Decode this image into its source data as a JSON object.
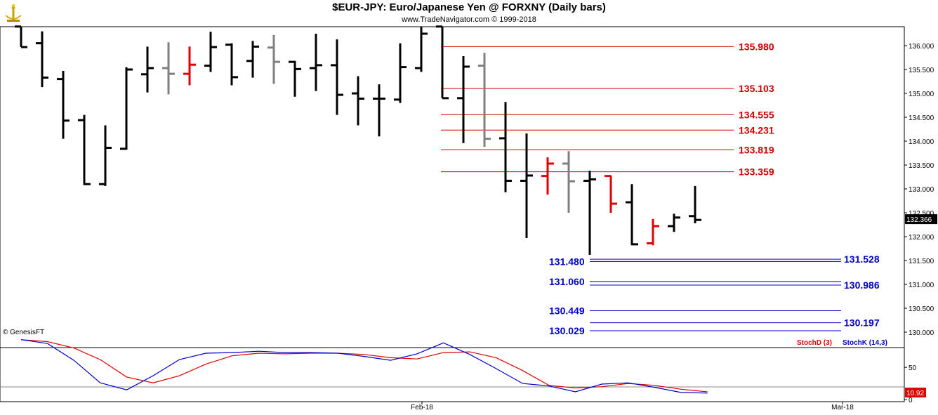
{
  "header": {
    "title": "$EUR-JPY:  Euro/Japanese Yen @ FORXNY  (Daily bars)",
    "subtitle": "www.TradeNavigator.com © 1999-2018",
    "copyright": "© GenesisFT"
  },
  "colors": {
    "up_bar": "#000000",
    "red_bar": "#e00000",
    "gray_bar": "#808080",
    "resistance": "#cc0000",
    "support": "#0000cc",
    "stoch_d": "#e00000",
    "stoch_k": "#0000cc",
    "price_tag_bg": "#000000",
    "stoch_tag_bg": "#e00000"
  },
  "chart_data": [
    {
      "type": "ohlc",
      "y_axis_ticks": [
        "136.000",
        "135.500",
        "135.000",
        "134.500",
        "134.000",
        "133.500",
        "133.000",
        "132.500",
        "132.000",
        "131.500",
        "131.000",
        "130.500",
        "130.000"
      ],
      "ylim": [
        129.6,
        136.4
      ],
      "x_tick_labels": [
        "Feb-18",
        "Mar-18"
      ],
      "last_price_label": "132.366",
      "bars": [
        {
          "o": 136.4,
          "h": 136.4,
          "l": 135.97,
          "c": 135.97,
          "color": "black"
        },
        {
          "o": 136.05,
          "h": 136.3,
          "l": 135.13,
          "c": 135.33,
          "color": "black"
        },
        {
          "o": 135.3,
          "h": 135.47,
          "l": 134.05,
          "c": 134.43,
          "color": "black"
        },
        {
          "o": 134.44,
          "h": 134.55,
          "l": 133.08,
          "c": 133.1,
          "color": "black"
        },
        {
          "o": 133.1,
          "h": 134.33,
          "l": 133.06,
          "c": 133.86,
          "color": "black"
        },
        {
          "o": 133.84,
          "h": 135.55,
          "l": 133.82,
          "c": 135.5,
          "color": "black"
        },
        {
          "o": 135.4,
          "h": 135.98,
          "l": 135.02,
          "c": 135.53,
          "color": "black"
        },
        {
          "o": 135.53,
          "h": 136.07,
          "l": 134.98,
          "c": 135.41,
          "color": "gray"
        },
        {
          "o": 135.41,
          "h": 135.98,
          "l": 135.17,
          "c": 135.6,
          "color": "red"
        },
        {
          "o": 135.58,
          "h": 136.29,
          "l": 135.45,
          "c": 135.97,
          "color": "black"
        },
        {
          "o": 136.02,
          "h": 136.05,
          "l": 135.17,
          "c": 135.34,
          "color": "black"
        },
        {
          "o": 135.68,
          "h": 136.1,
          "l": 135.33,
          "c": 135.98,
          "color": "black"
        },
        {
          "o": 135.96,
          "h": 136.22,
          "l": 135.2,
          "c": 135.66,
          "color": "gray"
        },
        {
          "o": 135.66,
          "h": 135.68,
          "l": 134.93,
          "c": 135.51,
          "color": "black"
        },
        {
          "o": 135.53,
          "h": 136.25,
          "l": 135.05,
          "c": 135.59,
          "color": "black"
        },
        {
          "o": 135.59,
          "h": 136.13,
          "l": 134.55,
          "c": 134.97,
          "color": "black"
        },
        {
          "o": 135.0,
          "h": 135.36,
          "l": 134.33,
          "c": 134.89,
          "color": "black"
        },
        {
          "o": 134.89,
          "h": 135.19,
          "l": 134.1,
          "c": 134.89,
          "color": "black"
        },
        {
          "o": 134.87,
          "h": 136.05,
          "l": 134.8,
          "c": 135.55,
          "color": "black"
        },
        {
          "o": 135.53,
          "h": 136.4,
          "l": 135.45,
          "c": 136.25,
          "color": "black"
        },
        {
          "o": 136.4,
          "h": 136.4,
          "l": 134.9,
          "c": 134.9,
          "color": "black"
        },
        {
          "o": 134.9,
          "h": 135.78,
          "l": 133.96,
          "c": 135.56,
          "color": "black"
        },
        {
          "o": 135.58,
          "h": 135.85,
          "l": 133.88,
          "c": 134.05,
          "color": "gray"
        },
        {
          "o": 134.06,
          "h": 134.82,
          "l": 132.93,
          "c": 133.17,
          "color": "black"
        },
        {
          "o": 133.17,
          "h": 134.16,
          "l": 131.97,
          "c": 133.28,
          "color": "black"
        },
        {
          "o": 133.27,
          "h": 133.66,
          "l": 132.88,
          "c": 133.53,
          "color": "red"
        },
        {
          "o": 133.53,
          "h": 133.79,
          "l": 132.5,
          "c": 133.16,
          "color": "gray"
        },
        {
          "o": 133.17,
          "h": 133.38,
          "l": 131.62,
          "c": 133.2,
          "color": "black"
        },
        {
          "o": 133.27,
          "h": 133.28,
          "l": 132.5,
          "c": 132.69,
          "color": "red"
        },
        {
          "o": 132.72,
          "h": 133.1,
          "l": 131.82,
          "c": 131.84,
          "color": "black"
        },
        {
          "o": 131.86,
          "h": 132.37,
          "l": 131.82,
          "c": 132.22,
          "color": "red"
        },
        {
          "o": 132.22,
          "h": 132.48,
          "l": 132.1,
          "c": 132.4,
          "color": "black"
        },
        {
          "o": 132.43,
          "h": 133.06,
          "l": 132.28,
          "c": 132.35,
          "color": "black"
        }
      ],
      "resistance_levels": [
        "135.980",
        "135.103",
        "134.555",
        "134.231",
        "133.819",
        "133.359"
      ],
      "support_levels_left": [
        "131.480",
        "131.060",
        "130.449",
        "130.029"
      ],
      "support_levels_right": [
        "131.528",
        "130.986",
        "130.197"
      ]
    },
    {
      "type": "line",
      "ylim": [
        0,
        100
      ],
      "y_axis_ticks": [
        "50",
        "0"
      ],
      "last_value_label": "10.92",
      "series": [
        {
          "name": "StochD (3)",
          "color": "#e00000",
          "values": [
            93,
            90,
            80,
            62,
            35,
            26,
            37,
            55,
            68,
            72,
            71,
            72,
            72,
            70,
            65,
            63,
            73,
            74,
            65,
            45,
            22,
            18,
            20,
            25,
            22,
            16,
            12
          ]
        },
        {
          "name": "StochK (14,3)",
          "color": "#0000cc",
          "values": [
            93,
            87,
            61,
            26,
            15,
            37,
            62,
            72,
            73,
            75,
            73,
            73,
            72,
            67,
            61,
            71,
            88,
            70,
            48,
            25,
            21,
            12,
            24,
            26,
            19,
            11,
            10
          ]
        }
      ]
    }
  ]
}
